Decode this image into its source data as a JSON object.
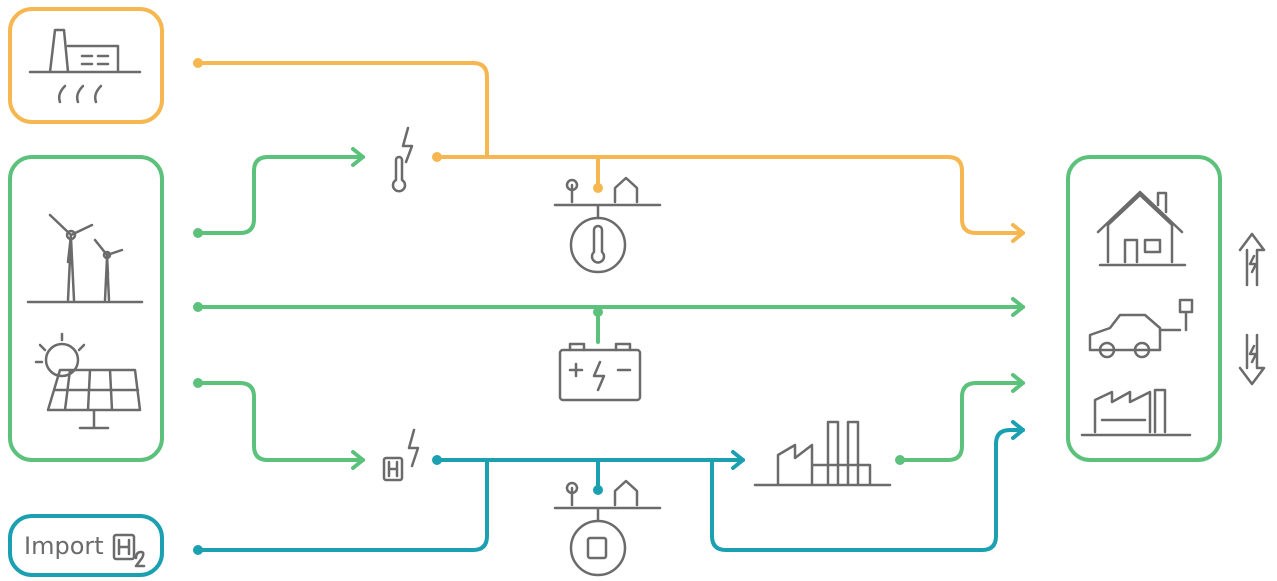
{
  "nodes": [
    {
      "label": "Import"
    }
  ]
}
